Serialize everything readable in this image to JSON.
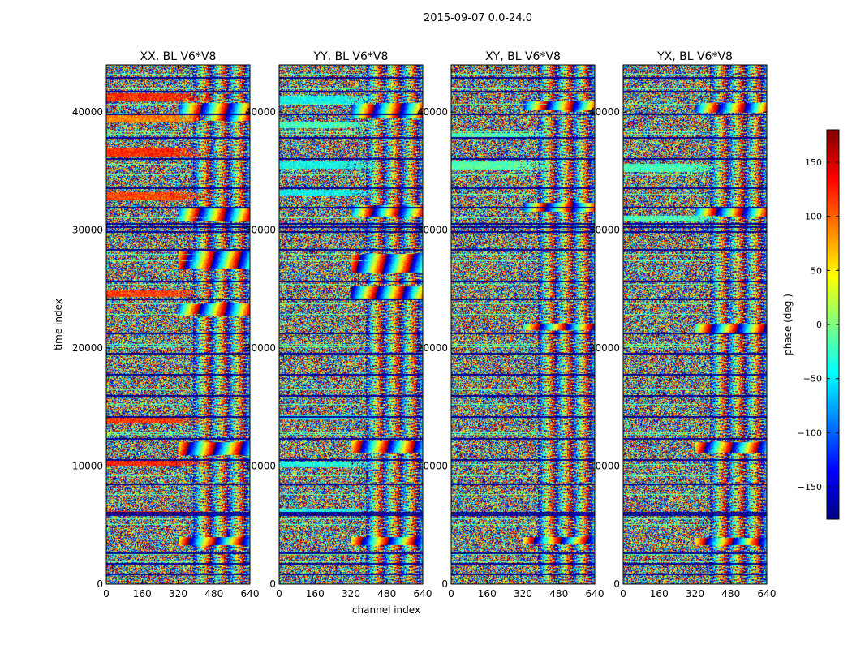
{
  "chart_data": {
    "type": "heatmap",
    "suptitle": "2015-09-07 0.0-24.0",
    "xlabel": "channel index",
    "ylabel": "time index",
    "x_ticks": [
      0,
      160,
      320,
      480,
      640
    ],
    "y_ticks": [
      0,
      10000,
      20000,
      30000,
      40000
    ],
    "xlim": [
      0,
      640
    ],
    "ylim": [
      0,
      44000
    ],
    "panels": [
      {
        "title": "XX, BL V6*V8"
      },
      {
        "title": "YY, BL V6*V8"
      },
      {
        "title": "XY, BL V6*V8"
      },
      {
        "title": "YX, BL V6*V8"
      }
    ],
    "colorbar": {
      "label": "phase (deg.)",
      "ticks": [
        -150,
        -100,
        -50,
        0,
        50,
        100,
        150
      ],
      "vmin": -180,
      "vmax": 180,
      "colormap": [
        "#00007f",
        "#0000ff",
        "#007fff",
        "#00ffff",
        "#7fff7f",
        "#ffff00",
        "#ff7f00",
        "#ff0000",
        "#7f0000"
      ]
    },
    "grid": false,
    "legend": "none"
  }
}
